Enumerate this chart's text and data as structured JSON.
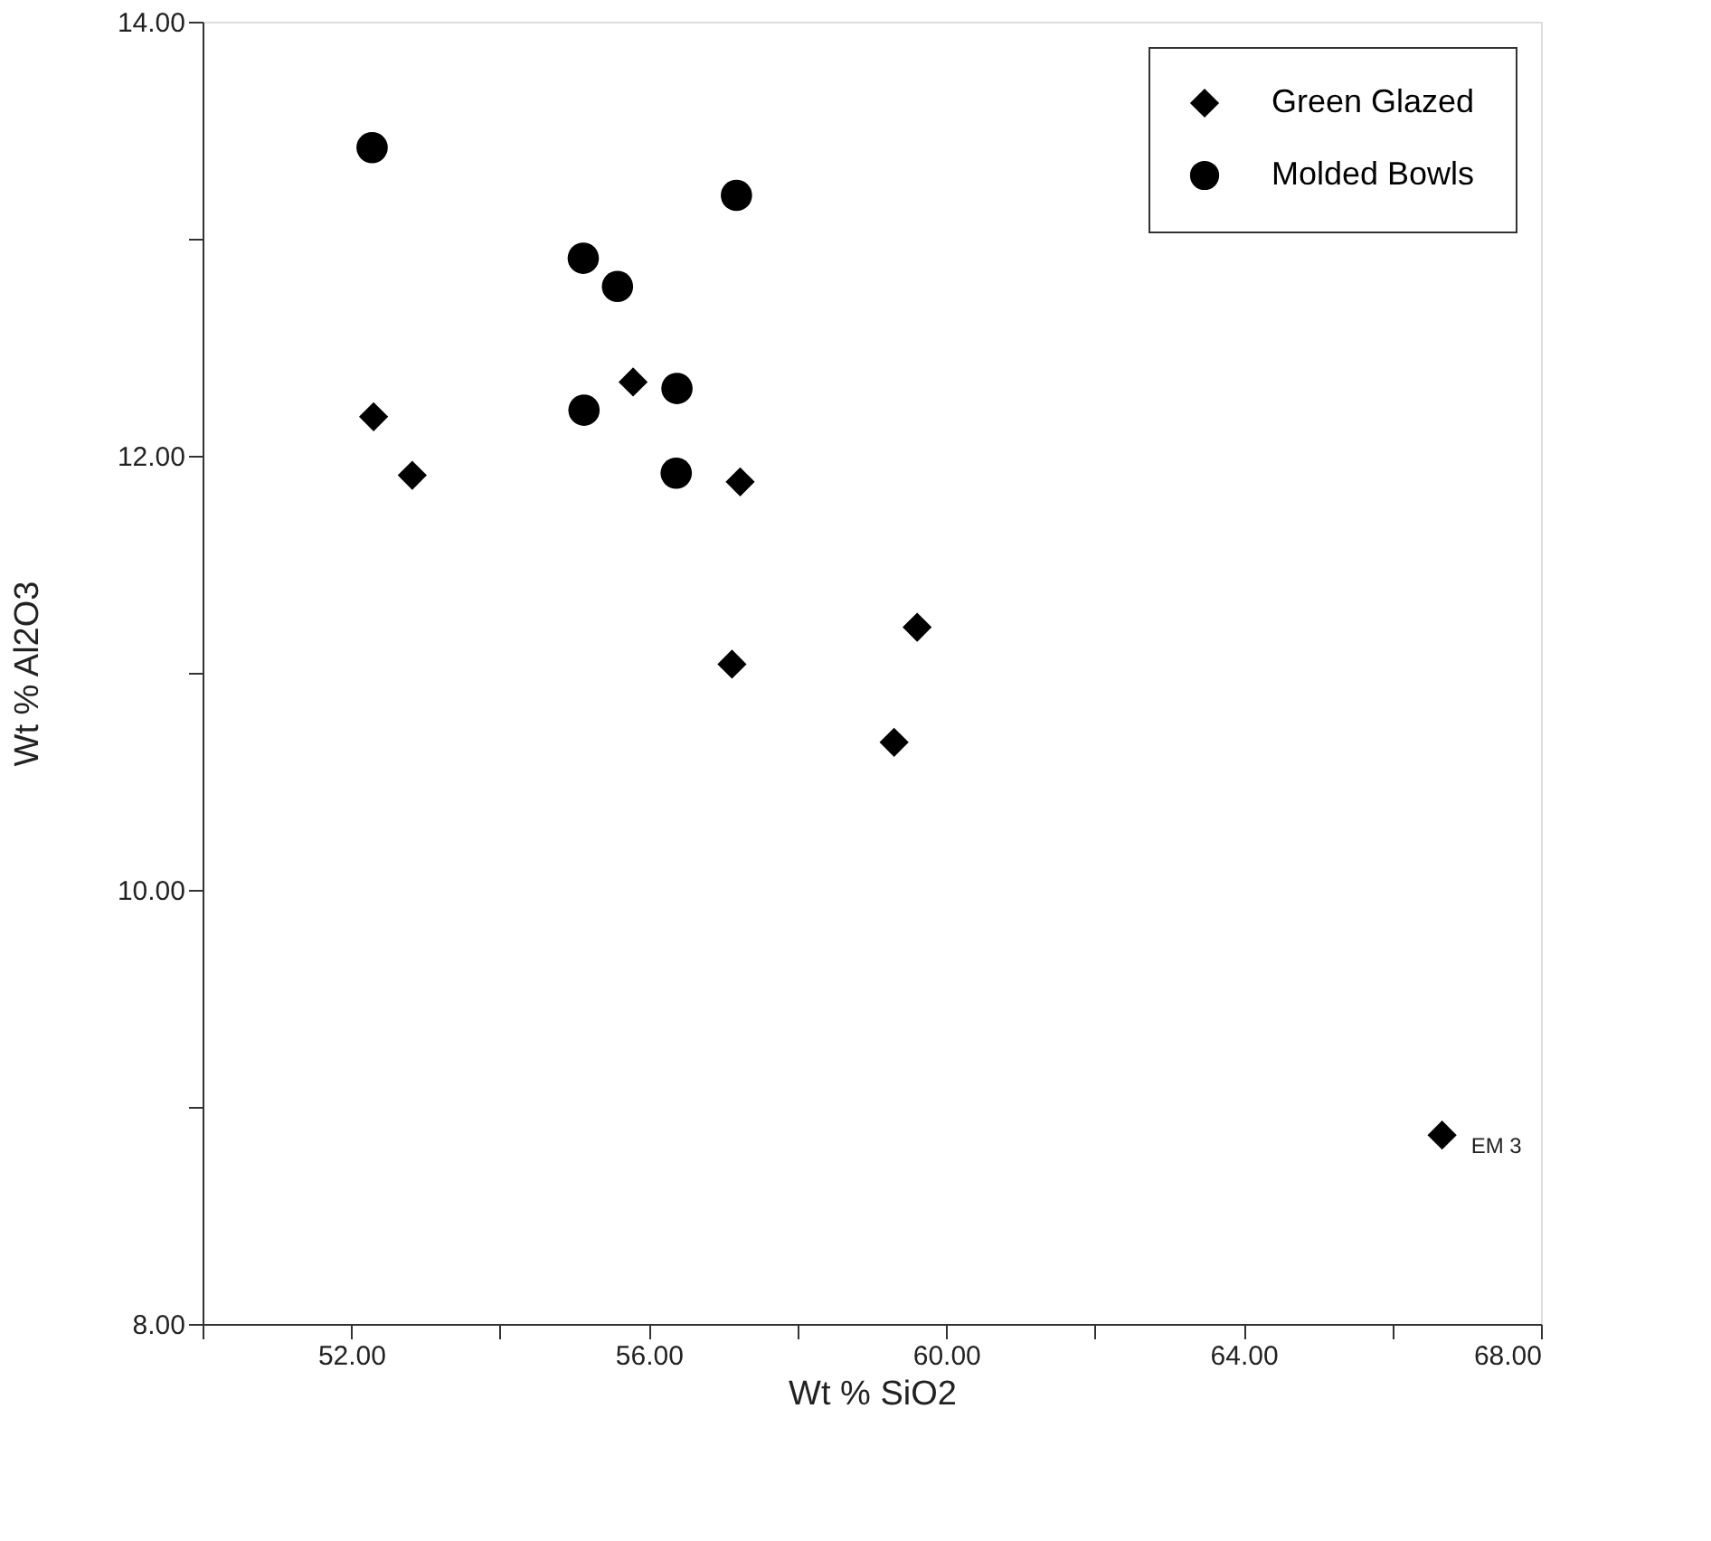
{
  "chart_data": {
    "type": "scatter",
    "xlabel": "Wt %  SiO2",
    "ylabel": "Wt %  Al2O3",
    "xlim": [
      50,
      68
    ],
    "ylim": [
      8,
      14
    ],
    "xticks": [
      {
        "value": 50,
        "label": null
      },
      {
        "value": 52,
        "label": "52.00"
      },
      {
        "value": 54,
        "label": null
      },
      {
        "value": 56,
        "label": "56.00"
      },
      {
        "value": 58,
        "label": null
      },
      {
        "value": 60,
        "label": "60.00"
      },
      {
        "value": 62,
        "label": null
      },
      {
        "value": 64,
        "label": "64.00"
      },
      {
        "value": 66,
        "label": null
      },
      {
        "value": 68,
        "label": "68.00"
      }
    ],
    "yticks": [
      {
        "value": 8,
        "label": "8.00"
      },
      {
        "value": 9,
        "label": null
      },
      {
        "value": 10,
        "label": "10.00"
      },
      {
        "value": 11,
        "label": null
      },
      {
        "value": 12,
        "label": "12.00"
      },
      {
        "value": 13,
        "label": null
      },
      {
        "value": 14,
        "label": "14.00"
      }
    ],
    "grid": false,
    "legend": "top right",
    "series": [
      {
        "name": "Green Glazed",
        "color": "#000000",
        "marker": "diamond",
        "x": [
          52.3,
          52.82,
          55.79,
          57.23,
          57.12,
          59.61,
          59.3,
          66.67
        ],
        "values": [
          12.18,
          11.91,
          12.34,
          11.88,
          11.04,
          11.21,
          10.68,
          8.87
        ]
      },
      {
        "name": "Molded Bowls",
        "color": "#000000",
        "marker": "circle",
        "x": [
          52.28,
          57.18,
          55.12,
          55.58,
          56.38,
          55.13,
          56.37
        ],
        "values": [
          13.42,
          13.2,
          12.91,
          12.78,
          12.31,
          12.21,
          11.92
        ]
      }
    ],
    "annotations": [
      {
        "text": "EM 3",
        "x": 66.67,
        "y": 8.87
      }
    ]
  }
}
